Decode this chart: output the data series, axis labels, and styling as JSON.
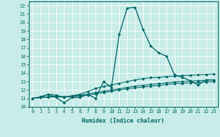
{
  "xlabel": "Humidex (Indice chaleur)",
  "background_color": "#c8ece8",
  "grid_color": "#ffffff",
  "line_color": "#006868",
  "xlim": [
    -0.5,
    23.5
  ],
  "ylim": [
    10,
    22.5
  ],
  "xticks": [
    0,
    1,
    2,
    3,
    4,
    5,
    6,
    7,
    8,
    9,
    10,
    11,
    12,
    13,
    14,
    15,
    16,
    17,
    18,
    19,
    20,
    21,
    22,
    23
  ],
  "yticks": [
    10,
    11,
    12,
    13,
    14,
    15,
    16,
    17,
    18,
    19,
    20,
    21,
    22
  ],
  "series": [
    [
      11.0,
      11.1,
      11.5,
      11.1,
      10.5,
      11.1,
      11.1,
      11.5,
      11.0,
      13.0,
      12.3,
      18.6,
      21.7,
      21.8,
      19.2,
      17.2,
      16.4,
      16.0,
      13.8,
      13.5,
      13.1,
      12.6,
      13.2,
      13.2
    ],
    [
      11.0,
      11.2,
      11.5,
      11.4,
      11.1,
      11.3,
      11.5,
      11.8,
      12.2,
      12.4,
      12.6,
      12.8,
      13.0,
      13.2,
      13.35,
      13.45,
      13.5,
      13.6,
      13.65,
      13.7,
      13.75,
      13.8,
      13.85,
      13.9
    ],
    [
      11.0,
      11.1,
      11.2,
      11.3,
      11.2,
      11.3,
      11.4,
      11.5,
      11.7,
      11.85,
      12.0,
      12.15,
      12.3,
      12.45,
      12.55,
      12.65,
      12.75,
      12.85,
      12.95,
      13.0,
      13.05,
      13.1,
      13.15,
      13.2
    ],
    [
      11.0,
      11.1,
      11.15,
      11.2,
      11.15,
      11.2,
      11.3,
      11.4,
      11.55,
      11.7,
      11.85,
      12.0,
      12.15,
      12.25,
      12.35,
      12.45,
      12.55,
      12.65,
      12.75,
      12.8,
      12.85,
      12.9,
      12.95,
      13.0
    ]
  ]
}
